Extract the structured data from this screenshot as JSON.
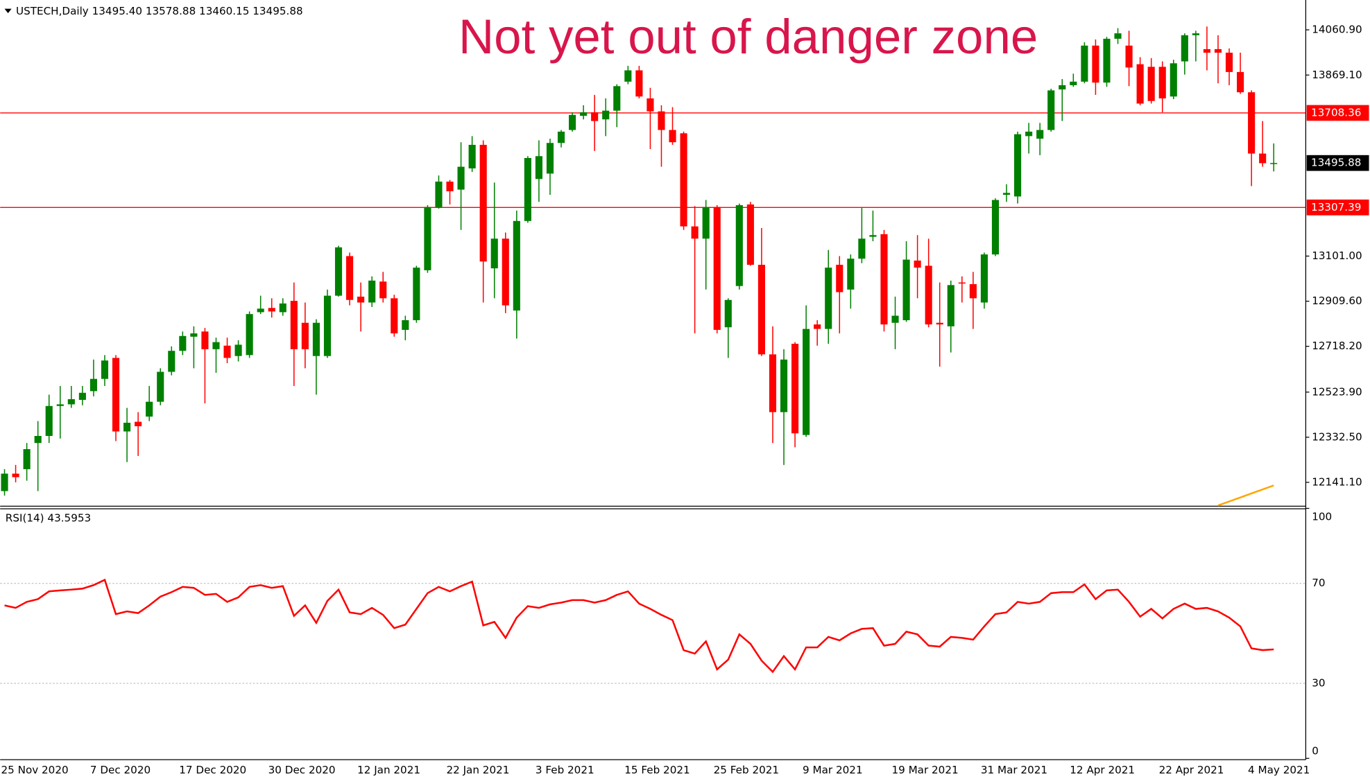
{
  "chart_data": [
    {
      "type": "candlestick",
      "title": "Not yet out of danger zone",
      "subtitle": "USTECH,Daily  13495.40 13578.88 13460.15 13495.88",
      "categories": [
        "25 Nov 2020",
        null,
        null,
        null,
        null,
        null,
        null,
        null,
        "7 Dec 2020",
        null,
        null,
        null,
        null,
        null,
        null,
        null,
        "17 Dec 2020",
        null,
        null,
        null,
        null,
        null,
        null,
        null,
        "30 Dec 2020",
        null,
        null,
        null,
        null,
        null,
        null,
        null,
        "12 Jan 2021",
        null,
        null,
        null,
        null,
        null,
        null,
        null,
        "22 Jan 2021",
        null,
        null,
        null,
        null,
        null,
        null,
        null,
        "3 Feb 2021",
        null,
        null,
        null,
        null,
        null,
        null,
        null,
        "15 Feb 2021",
        null,
        null,
        null,
        null,
        null,
        null,
        null,
        "25 Feb 2021",
        null,
        null,
        null,
        null,
        null,
        null,
        null,
        "9 Mar 2021",
        null,
        null,
        null,
        null,
        null,
        null,
        null,
        "19 Mar 2021",
        null,
        null,
        null,
        null,
        null,
        null,
        null,
        "31 Mar 2021",
        null,
        null,
        null,
        null,
        null,
        null,
        null,
        "12 Apr 2021",
        null,
        null,
        null,
        null,
        null,
        null,
        null,
        "22 Apr 2021",
        null,
        null,
        null,
        null,
        null,
        null,
        null,
        "4 May 2021",
        null,
        null
      ],
      "open": [
        12104,
        12178,
        12197,
        12308,
        12338,
        12465,
        12472,
        12491,
        12528,
        12580,
        12669,
        12357,
        12398,
        12420,
        12483,
        12610,
        12699,
        12759,
        12781,
        12706,
        12721,
        12677,
        12681,
        12863,
        12881,
        12863,
        12911,
        12818,
        12677,
        12677,
        12933,
        13101,
        12929,
        12904,
        12993,
        12922,
        12788,
        12829,
        13041,
        13309,
        13417,
        13383,
        13473,
        13573,
        13049,
        13175,
        12870,
        13250,
        13428,
        13451,
        13581,
        13636,
        13696,
        13711,
        13681,
        13718,
        13841,
        13889,
        13770,
        13715,
        13636,
        13622,
        13227,
        13175,
        13309,
        12799,
        12974,
        13320,
        13064,
        12684,
        12439,
        12729,
        12342,
        12811,
        12792,
        13064,
        12959,
        13090,
        13183,
        13194,
        12818,
        12829,
        13082,
        13060,
        12818,
        12803,
        12989,
        12982,
        12904,
        13108,
        13361,
        13354,
        13610,
        13599,
        13636,
        13808,
        13826,
        13841,
        13994,
        13837,
        14023,
        13994,
        13915,
        13904,
        13904,
        13778,
        13927,
        14038,
        13979,
        13979,
        13964,
        13882,
        13796,
        13536,
        13495.4
      ],
      "high": [
        12197,
        12215,
        12308,
        12401,
        12513,
        12550,
        12550,
        12550,
        12662,
        12681,
        12681,
        12457,
        12439,
        12550,
        12625,
        12718,
        12781,
        12803,
        12796,
        12755,
        12755,
        12744,
        12866,
        12933,
        12922,
        12922,
        12989,
        12904,
        12833,
        12959,
        13145,
        13116,
        12989,
        13015,
        13034,
        12937,
        12848,
        13060,
        13317,
        13443,
        13424,
        13584,
        13610,
        13592,
        13413,
        13201,
        13294,
        13525,
        13592,
        13599,
        13636,
        13711,
        13741,
        13785,
        13770,
        13830,
        13908,
        13908,
        13815,
        13741,
        13733,
        13629,
        13313,
        13339,
        13317,
        12922,
        13324,
        13331,
        13220,
        12803,
        12706,
        12736,
        12892,
        12829,
        13127,
        13101,
        13108,
        13305,
        13294,
        13212,
        12929,
        13164,
        13190,
        13175,
        12989,
        12997,
        13015,
        13034,
        13116,
        13346,
        13406,
        13629,
        13666,
        13666,
        13811,
        13852,
        13875,
        14008,
        14020,
        14031,
        14068,
        14057,
        13945,
        13941,
        13927,
        13934,
        14046,
        14057,
        14075,
        14038,
        13982,
        13964,
        13804,
        13674,
        13578.88
      ],
      "low": [
        12085,
        12141,
        12148,
        12104,
        12308,
        12327,
        12457,
        12468,
        12506,
        12550,
        12316,
        12227,
        12253,
        12401,
        12468,
        12595,
        12681,
        12625,
        12476,
        12606,
        12647,
        12654,
        12669,
        12855,
        12840,
        12848,
        12550,
        12625,
        12513,
        12669,
        12929,
        12892,
        12781,
        12885,
        12904,
        12759,
        12744,
        12818,
        13030,
        13302,
        13320,
        13212,
        13458,
        12904,
        12922,
        12859,
        12751,
        13242,
        13331,
        13361,
        13562,
        13629,
        13681,
        13547,
        13610,
        13648,
        13830,
        13770,
        13555,
        13480,
        13573,
        13212,
        12773,
        12959,
        12773,
        12669,
        12959,
        13060,
        12677,
        12308,
        12215,
        12290,
        12334,
        12721,
        12729,
        12773,
        12878,
        13071,
        13164,
        12781,
        12706,
        12822,
        12922,
        12799,
        12632,
        12692,
        12904,
        12792,
        12878,
        13101,
        13331,
        13324,
        13536,
        13529,
        13629,
        13674,
        13819,
        13834,
        13785,
        13819,
        14001,
        13822,
        13741,
        13748,
        13711,
        13767,
        13871,
        13927,
        13889,
        13834,
        13826,
        13789,
        13398,
        13480,
        13460.15
      ],
      "close": [
        12178,
        12163,
        12282,
        12338,
        12465,
        12472,
        12494,
        12521,
        12580,
        12658,
        12357,
        12394,
        12379,
        12483,
        12610,
        12699,
        12762,
        12773,
        12706,
        12736,
        12669,
        12725,
        12855,
        12878,
        12866,
        12900,
        12706,
        12706,
        12818,
        12933,
        13138,
        12915,
        12904,
        12997,
        12922,
        12773,
        12829,
        13052,
        13309,
        13417,
        13376,
        13480,
        13573,
        13078,
        13175,
        12892,
        13250,
        13517,
        13525,
        13581,
        13629,
        13700,
        13711,
        13674,
        13718,
        13822,
        13889,
        13778,
        13715,
        13636,
        13584,
        13227,
        13175,
        13309,
        12788,
        12915,
        13317,
        13064,
        12684,
        12439,
        12662,
        12349,
        12792,
        12792,
        13052,
        12948,
        13090,
        13175,
        13190,
        12811,
        12848,
        13086,
        13052,
        12811,
        12811,
        12978,
        12985,
        12922,
        13108,
        13339,
        13369,
        13618,
        13629,
        13636,
        13804,
        13826,
        13841,
        13994,
        13837,
        14023,
        14046,
        13901,
        13748,
        13759,
        13770,
        13919,
        14038,
        14046,
        13964,
        13964,
        13882,
        13796,
        13536,
        13495,
        13495.88
      ],
      "up_color": "#008000",
      "down_color": "#ff0000",
      "ma": {
        "color": "#ffa500",
        "values": [
          null,
          null,
          null,
          null,
          null,
          null,
          null,
          null,
          null,
          null,
          null,
          null,
          null,
          null,
          null,
          null,
          null,
          null,
          null,
          null,
          null,
          null,
          null,
          null,
          null,
          null,
          null,
          null,
          null,
          null,
          null,
          null,
          null,
          null,
          null,
          null,
          null,
          null,
          null,
          null,
          null,
          null,
          null,
          null,
          null,
          null,
          null,
          null,
          null,
          null,
          null,
          null,
          null,
          null,
          null,
          null,
          null,
          null,
          null,
          null,
          null,
          null,
          null,
          null,
          null,
          null,
          null,
          null,
          null,
          null,
          null,
          null,
          null,
          null,
          null,
          null,
          null,
          null,
          null,
          null,
          null,
          null,
          null,
          null,
          null,
          null,
          null,
          null,
          null,
          null,
          null,
          null,
          null,
          null,
          null,
          null,
          null,
          null,
          null,
          null,
          null,
          null,
          null,
          null,
          null,
          null,
          null,
          null,
          null,
          12043,
          12060,
          12077,
          12094,
          12111,
          12128
        ]
      },
      "levels": [
        13708.36,
        13307.39
      ],
      "level_color": "#ff0000",
      "ylim": [
        12040,
        14180
      ],
      "yticks": [
        {
          "value": 14060.9,
          "label": "14060.90"
        },
        {
          "value": 13869.1,
          "label": "13869.10"
        },
        {
          "value": 13101,
          "label": "13101.00"
        },
        {
          "value": 12909.6,
          "label": "12909.60"
        },
        {
          "value": 12718.2,
          "label": "12718.20"
        },
        {
          "value": 12523.9,
          "label": "12523.90"
        },
        {
          "value": 12332.5,
          "label": "12332.50"
        },
        {
          "value": 12141.1,
          "label": "12141.10"
        }
      ]
    },
    {
      "type": "line",
      "title": "RSI(14) 43.5953",
      "series": [
        {
          "color": "#ff0000",
          "values": [
            61.2,
            60.2,
            62.6,
            63.7,
            66.8,
            67.2,
            67.5,
            67.9,
            69.3,
            71.4,
            57.7,
            58.8,
            58.1,
            61.2,
            64.7,
            66.5,
            68.6,
            68.2,
            65.4,
            65.8,
            62.6,
            64.4,
            68.6,
            69.3,
            68.2,
            68.9,
            57.0,
            61.2,
            54.2,
            63.0,
            67.5,
            58.4,
            57.7,
            60.2,
            57.4,
            52.1,
            53.5,
            59.8,
            66.1,
            68.6,
            66.8,
            68.9,
            70.7,
            53.2,
            54.6,
            48.2,
            56.3,
            60.9,
            60.2,
            61.6,
            62.3,
            63.3,
            63.3,
            62.3,
            63.3,
            65.4,
            66.8,
            61.9,
            59.8,
            57.4,
            55.3,
            43.3,
            41.9,
            46.8,
            35.6,
            39.5,
            49.6,
            45.8,
            39.1,
            34.6,
            40.9,
            35.6,
            44.4,
            44.4,
            48.6,
            47.2,
            50.0,
            51.8,
            52.1,
            45.1,
            45.8,
            50.7,
            49.6,
            45.1,
            44.7,
            48.6,
            48.2,
            47.5,
            52.8,
            57.7,
            58.4,
            62.6,
            61.9,
            62.6,
            66.1,
            66.5,
            66.5,
            69.6,
            63.7,
            67.2,
            67.5,
            62.6,
            56.7,
            59.8,
            56.0,
            59.8,
            61.9,
            59.8,
            60.2,
            58.8,
            56.3,
            52.8,
            44.0,
            43.3,
            43.5953
          ]
        }
      ],
      "ylim": [
        0,
        100
      ],
      "yticks": [
        100,
        70,
        30,
        0
      ]
    }
  ]
}
